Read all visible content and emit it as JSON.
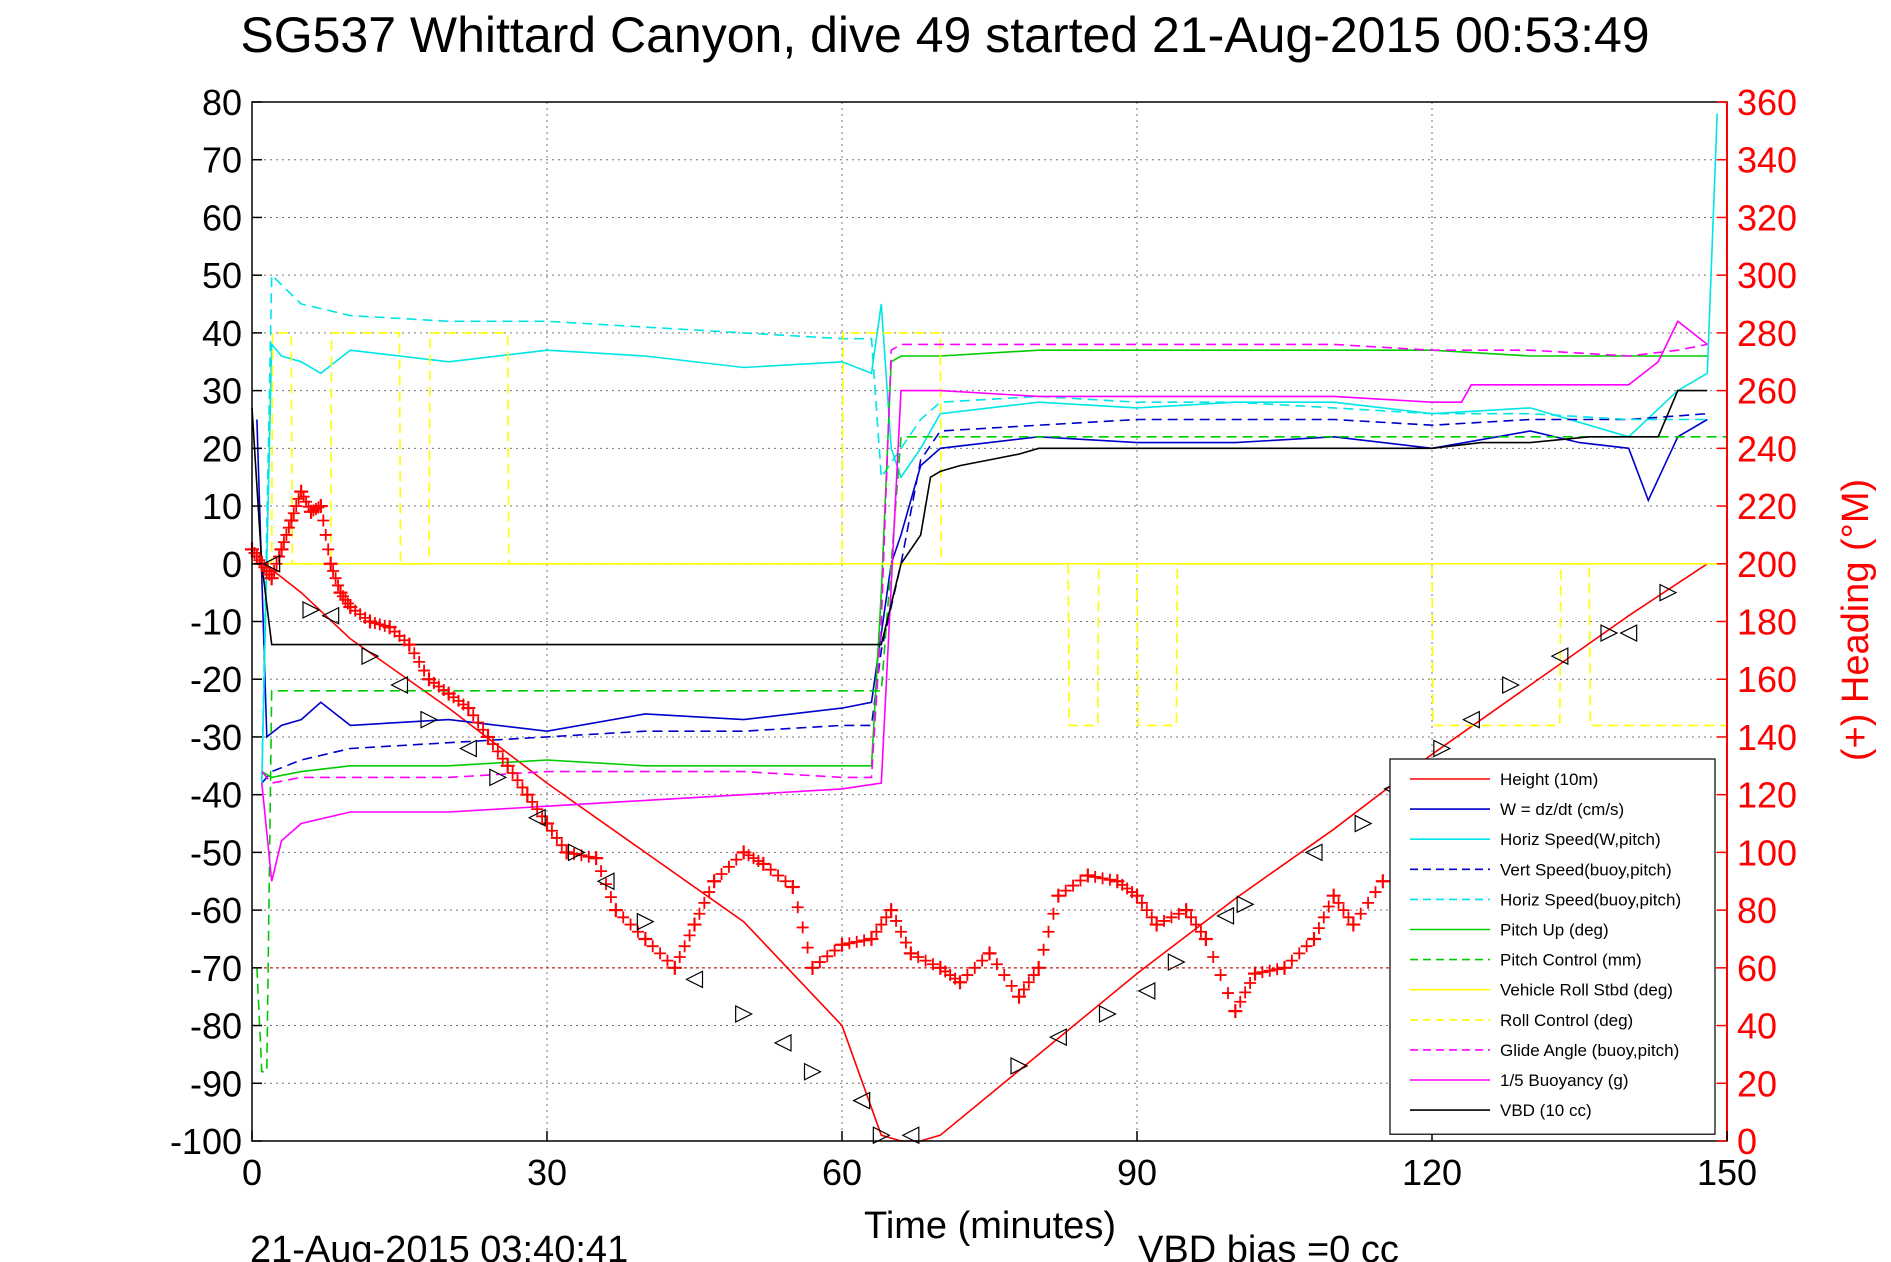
{
  "chart_data": {
    "type": "line",
    "title": "SG537 Whittard Canyon, dive 49 started 21-Aug-2015 00:53:49",
    "xlabel": "Time (minutes)",
    "ylabel": "",
    "y2label": "(+) Heading (°M)",
    "xlim": [
      0,
      150
    ],
    "ylim": [
      -100,
      80
    ],
    "y2lim": [
      0,
      360
    ],
    "grid": true,
    "legend_position": "bottom-right",
    "x_ticks": [
      "0",
      "30",
      "60",
      "90",
      "120",
      "150"
    ],
    "y_ticks": [
      "80",
      "70",
      "60",
      "50",
      "40",
      "30",
      "20",
      "10",
      "0",
      "-10",
      "-20",
      "-30",
      "-40",
      "-50",
      "-60",
      "-70",
      "-80",
      "-90",
      "-100"
    ],
    "y2_ticks": [
      "360",
      "340",
      "320",
      "300",
      "280",
      "260",
      "240",
      "220",
      "200",
      "180",
      "160",
      "140",
      "120",
      "100",
      "80",
      "60",
      "40",
      "20",
      "0"
    ],
    "footer_left": "21-Aug-2015 03:40:41",
    "footer_right": "VBD bias =0 cc",
    "series": [
      {
        "name": "Height (10m)",
        "color": "#ff0000",
        "style": "solid",
        "x": [
          0,
          1,
          2,
          5,
          10,
          20,
          30,
          40,
          50,
          60,
          64,
          66,
          68,
          70,
          80,
          90,
          100,
          110,
          120,
          130,
          140,
          148
        ],
        "y": [
          0,
          0,
          -1,
          -5,
          -13,
          -25,
          -38,
          -50,
          -62,
          -80,
          -99,
          -100,
          -100,
          -99,
          -85,
          -71,
          -58,
          -46,
          -33,
          -21,
          -9,
          0
        ]
      },
      {
        "name": "W = dz/dt (cm/s)",
        "color": "#0000cc",
        "style": "solid",
        "x": [
          0.5,
          1.5,
          3,
          5,
          7,
          10,
          20,
          30,
          40,
          50,
          60,
          63,
          65,
          66,
          68,
          70,
          80,
          90,
          100,
          110,
          120,
          130,
          135,
          140,
          142,
          145,
          148
        ],
        "y": [
          25,
          -30,
          -28,
          -27,
          -24,
          -28,
          -27,
          -29,
          -26,
          -27,
          -25,
          -24,
          0,
          5,
          17,
          20,
          22,
          21,
          21,
          22,
          20,
          23,
          21,
          20,
          11,
          22,
          25
        ]
      },
      {
        "name": "Horiz Speed(W,pitch)",
        "color": "#00e5e5",
        "style": "solid",
        "x": [
          1,
          2,
          3,
          5,
          7,
          10,
          20,
          30,
          40,
          50,
          60,
          63,
          64,
          65,
          66,
          68,
          70,
          80,
          90,
          100,
          110,
          120,
          130,
          140,
          145,
          148,
          149
        ],
        "y": [
          -38,
          38,
          36,
          35,
          33,
          37,
          35,
          37,
          36,
          34,
          35,
          33,
          45,
          20,
          15,
          20,
          26,
          28,
          27,
          28,
          28,
          26,
          27,
          22,
          30,
          33,
          78
        ]
      },
      {
        "name": "Vert Speed(buoy,pitch)",
        "color": "#0000cc",
        "style": "dashed",
        "x": [
          1,
          2,
          5,
          10,
          20,
          30,
          40,
          50,
          60,
          63,
          64,
          66,
          68,
          70,
          80,
          90,
          100,
          110,
          120,
          130,
          140,
          148
        ],
        "y": [
          -38,
          -36,
          -34,
          -32,
          -31,
          -30,
          -29,
          -29,
          -28,
          -28,
          -15,
          0,
          18,
          23,
          24,
          25,
          25,
          25,
          24,
          25,
          25,
          26
        ]
      },
      {
        "name": "Horiz Speed(buoy,pitch)",
        "color": "#00e5e5",
        "style": "dashed",
        "x": [
          1,
          2,
          5,
          10,
          20,
          30,
          40,
          50,
          60,
          63,
          64,
          66,
          68,
          70,
          80,
          90,
          100,
          110,
          120,
          130,
          140,
          148
        ],
        "y": [
          -38,
          50,
          45,
          43,
          42,
          42,
          41,
          40,
          39,
          39,
          15,
          20,
          25,
          28,
          29,
          28,
          28,
          27,
          26,
          26,
          25,
          25
        ]
      },
      {
        "name": "Pitch Up (deg)",
        "color": "#00cc00",
        "style": "solid",
        "x": [
          1,
          2,
          5,
          10,
          20,
          30,
          40,
          50,
          60,
          63,
          64,
          65,
          66,
          68,
          70,
          80,
          90,
          100,
          110,
          120,
          130,
          140,
          148
        ],
        "y": [
          -36,
          -37,
          -36,
          -35,
          -35,
          -34,
          -35,
          -35,
          -35,
          -35,
          -5,
          35,
          36,
          36,
          36,
          37,
          37,
          37,
          37,
          37,
          36,
          36,
          36
        ]
      },
      {
        "name": "Pitch Control (mm)",
        "color": "#00cc00",
        "style": "dashed",
        "x": [
          0.5,
          1,
          1.5,
          2,
          63,
          64,
          66,
          150
        ],
        "y": [
          -70,
          -88,
          -88,
          -22,
          -22,
          -22,
          22,
          22
        ]
      },
      {
        "name": "Vehicle Roll Stbd (deg)",
        "color": "#ffff00",
        "style": "solid",
        "x": [
          0,
          150
        ],
        "y": [
          0,
          0
        ]
      },
      {
        "name": "Roll Control (deg)",
        "color": "#ffff00",
        "style": "dashed",
        "x": [
          0,
          2,
          2.1,
          4,
          4.1,
          8,
          8.1,
          15,
          15.1,
          18,
          18.1,
          26,
          26.1,
          60,
          60.1,
          70,
          70.1,
          83,
          83.1,
          86,
          86.1,
          90,
          90.1,
          94,
          94.1,
          120,
          120.1,
          133,
          133.1,
          136,
          136.1,
          150
        ],
        "y": [
          0,
          0,
          40,
          40,
          0,
          0,
          40,
          40,
          0,
          0,
          40,
          40,
          0,
          0,
          40,
          40,
          0,
          0,
          -28,
          -28,
          0,
          0,
          -28,
          -28,
          0,
          0,
          -28,
          -28,
          0,
          0,
          -28,
          -28
        ]
      },
      {
        "name": "Glide Angle (buoy,pitch)",
        "color": "#ff00ff",
        "style": "dashed",
        "x": [
          1,
          2,
          5,
          10,
          20,
          30,
          40,
          50,
          60,
          63,
          64,
          65,
          66,
          70,
          80,
          90,
          100,
          110,
          120,
          130,
          140,
          145,
          148
        ],
        "y": [
          -36,
          -38,
          -37,
          -37,
          -37,
          -36,
          -36,
          -36,
          -37,
          -37,
          -10,
          37,
          38,
          38,
          38,
          38,
          38,
          38,
          37,
          37,
          36,
          37,
          38
        ]
      },
      {
        "name": "1/5 Buoyancy (g)",
        "color": "#ff00ff",
        "style": "solid",
        "x": [
          1,
          2,
          3,
          5,
          10,
          20,
          30,
          40,
          50,
          60,
          64,
          66,
          70,
          80,
          90,
          100,
          110,
          120,
          123,
          124,
          130,
          140,
          143,
          145,
          148
        ],
        "y": [
          -38,
          -55,
          -48,
          -45,
          -43,
          -43,
          -42,
          -41,
          -40,
          -39,
          -38,
          30,
          30,
          29,
          29,
          29,
          29,
          28,
          28,
          31,
          31,
          31,
          35,
          42,
          38
        ]
      },
      {
        "name": "VBD (10 cc)",
        "color": "#000000",
        "style": "solid",
        "x": [
          0,
          1,
          2,
          64,
          65,
          66,
          68,
          69,
          70,
          72,
          75,
          78,
          80,
          120,
          125,
          130,
          136,
          143,
          145,
          148
        ],
        "y": [
          27,
          0,
          -14,
          -14,
          -7,
          0,
          5,
          15,
          16,
          17,
          18,
          19,
          20,
          20,
          21,
          21,
          22,
          22,
          30,
          30
        ]
      },
      {
        "name": "Heading",
        "color": "#ff0000",
        "style": "plus",
        "axis": "right",
        "x": [
          0,
          1,
          2,
          3,
          4,
          5,
          6,
          7,
          8,
          9,
          10,
          12,
          14,
          16,
          18,
          20,
          22,
          24,
          26,
          28,
          30,
          32,
          35,
          37,
          40,
          43,
          45,
          47,
          50,
          52,
          55,
          57,
          60,
          63,
          65,
          67,
          70,
          72,
          75,
          78,
          80,
          82,
          85,
          88,
          90,
          92,
          95,
          97,
          100,
          102,
          105,
          108,
          110,
          112,
          115
        ],
        "y": [
          205,
          200,
          195,
          205,
          215,
          225,
          218,
          220,
          200,
          190,
          185,
          180,
          178,
          172,
          160,
          155,
          150,
          140,
          130,
          120,
          110,
          100,
          98,
          80,
          70,
          60,
          75,
          90,
          100,
          96,
          88,
          60,
          68,
          70,
          80,
          65,
          60,
          55,
          65,
          50,
          60,
          85,
          92,
          90,
          85,
          75,
          80,
          70,
          45,
          58,
          60,
          70,
          85,
          75,
          90
        ]
      },
      {
        "name": "Height triangles",
        "color": "#000000",
        "style": "triangle",
        "x": [
          2,
          6,
          8,
          12,
          15,
          18,
          22,
          25,
          29,
          33,
          36,
          40,
          45,
          50,
          54,
          57,
          62,
          64,
          67,
          78,
          82,
          87,
          91,
          94,
          99,
          101,
          108,
          113,
          116,
          121,
          124,
          128,
          133,
          138,
          140,
          144
        ],
        "y": [
          0,
          -8,
          -9,
          -16,
          -21,
          -27,
          -32,
          -37,
          -44,
          -50,
          -55,
          -62,
          -72,
          -78,
          -83,
          -88,
          -93,
          -99,
          -99,
          -87,
          -82,
          -78,
          -74,
          -69,
          -61,
          -59,
          -50,
          -45,
          -39,
          -32,
          -27,
          -21,
          -16,
          -12,
          -12,
          -5
        ]
      }
    ]
  }
}
